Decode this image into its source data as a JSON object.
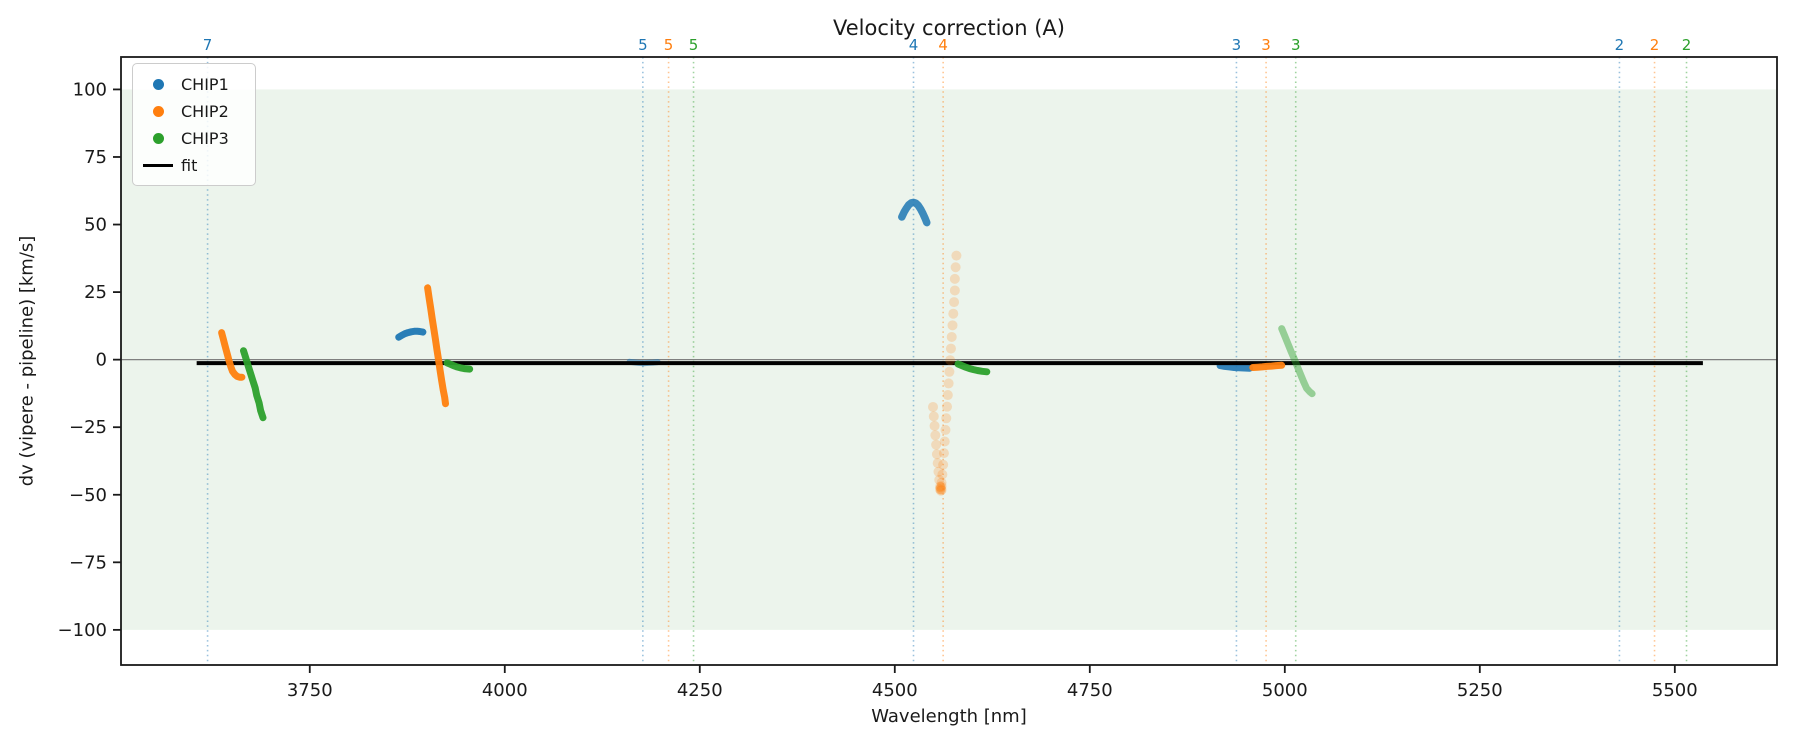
{
  "title": "Velocity correction (A)",
  "legend": {
    "items": [
      {
        "label": "CHIP1",
        "color": "#1f77b4",
        "marker": "dot"
      },
      {
        "label": "CHIP2",
        "color": "#ff7f0e",
        "marker": "dot"
      },
      {
        "label": "CHIP3",
        "color": "#2ca02c",
        "marker": "dot"
      },
      {
        "label": "fit",
        "color": "#000000",
        "marker": "line"
      }
    ]
  },
  "chart_data": {
    "type": "scatter",
    "title": "Velocity correction (A)",
    "xlabel": "Wavelength [nm]",
    "ylabel": "dv (vipere - pipeline) [km/s]",
    "xlim": [
      3508,
      5631
    ],
    "ylim": [
      -113,
      112
    ],
    "x_ticks": [
      3750,
      4000,
      4250,
      4500,
      4750,
      5000,
      5250,
      5500
    ],
    "y_ticks": [
      -100,
      -75,
      -50,
      -25,
      0,
      25,
      50,
      75,
      100
    ],
    "grid": false,
    "legend_position": "upper left",
    "band": {
      "ymin": -100,
      "ymax": 100,
      "color": "#ecf4ec"
    },
    "zero_line": {
      "y": 0,
      "color": "#7f7f7f",
      "width": 1.2
    },
    "fit": {
      "label": "fit",
      "dv": -1.3,
      "wavelength_start": 3605,
      "wavelength_end": 5536,
      "color": "#000000",
      "width": 4
    },
    "order_lines": [
      {
        "chip": "CHIP1",
        "label": "7",
        "wavelength": 3619,
        "color": "#1f77b4"
      },
      {
        "chip": "CHIP1",
        "label": "5",
        "wavelength": 4177,
        "color": "#1f77b4"
      },
      {
        "chip": "CHIP2",
        "label": "5",
        "wavelength": 4210,
        "color": "#ff7f0e"
      },
      {
        "chip": "CHIP3",
        "label": "5",
        "wavelength": 4242,
        "color": "#2ca02c"
      },
      {
        "chip": "CHIP1",
        "label": "4",
        "wavelength": 4524,
        "color": "#1f77b4"
      },
      {
        "chip": "CHIP2",
        "label": "4",
        "wavelength": 4562,
        "color": "#ff7f0e"
      },
      {
        "chip": "CHIP1",
        "label": "3",
        "wavelength": 4938,
        "color": "#1f77b4"
      },
      {
        "chip": "CHIP2",
        "label": "3",
        "wavelength": 4976,
        "color": "#ff7f0e"
      },
      {
        "chip": "CHIP3",
        "label": "3",
        "wavelength": 5014,
        "color": "#2ca02c"
      },
      {
        "chip": "CHIP1",
        "label": "2",
        "wavelength": 5429,
        "color": "#1f77b4"
      },
      {
        "chip": "CHIP2",
        "label": "2",
        "wavelength": 5474,
        "color": "#ff7f0e"
      },
      {
        "chip": "CHIP3",
        "label": "2",
        "wavelength": 5515,
        "color": "#2ca02c"
      }
    ],
    "series": [
      {
        "name": "CHIP1",
        "color": "#1f77b4",
        "segments": [
          {
            "style": "streak",
            "width": 7,
            "opacity": 0.95,
            "points": [
              [
                3864,
                8.3
              ],
              [
                3868,
                9.0
              ],
              [
                3872,
                9.6
              ],
              [
                3876,
                10.0
              ],
              [
                3880,
                10.3
              ],
              [
                3884,
                10.5
              ],
              [
                3888,
                10.5
              ],
              [
                3891,
                10.4
              ],
              [
                3895,
                10.2
              ]
            ]
          },
          {
            "style": "streak",
            "width": 6,
            "opacity": 0.55,
            "points": [
              [
                4160,
                -0.8
              ],
              [
                4166,
                -1.0
              ],
              [
                4172,
                -1.2
              ],
              [
                4178,
                -1.3
              ],
              [
                4184,
                -1.2
              ],
              [
                4190,
                -1.1
              ],
              [
                4196,
                -0.9
              ]
            ]
          },
          {
            "style": "streak",
            "width": 7.5,
            "opacity": 0.85,
            "points": [
              [
                4509,
                52.8
              ],
              [
                4512,
                54.6
              ],
              [
                4515,
                56.1
              ],
              [
                4518,
                57.3
              ],
              [
                4521,
                58.0
              ],
              [
                4524,
                58.2
              ],
              [
                4527,
                57.9
              ],
              [
                4530,
                57.1
              ],
              [
                4533,
                55.8
              ],
              [
                4536,
                54.1
              ],
              [
                4539,
                52.2
              ],
              [
                4541,
                50.7
              ]
            ]
          },
          {
            "style": "streak",
            "width": 7,
            "opacity": 0.9,
            "points": [
              [
                4917,
                -2.2
              ],
              [
                4923,
                -2.5
              ],
              [
                4929,
                -2.7
              ],
              [
                4935,
                -2.9
              ],
              [
                4941,
                -3.0
              ],
              [
                4948,
                -3.1
              ],
              [
                4955,
                -3.2
              ]
            ]
          }
        ]
      },
      {
        "name": "CHIP2",
        "color": "#ff7f0e",
        "segments": [
          {
            "style": "streak",
            "width": 7,
            "opacity": 0.95,
            "points": [
              [
                3637,
                10.0
              ],
              [
                3639,
                7.8
              ],
              [
                3641,
                5.6
              ],
              [
                3643,
                3.4
              ],
              [
                3645,
                1.2
              ],
              [
                3647,
                -0.9
              ],
              [
                3649,
                -2.8
              ],
              [
                3651,
                -4.3
              ],
              [
                3654,
                -5.5
              ],
              [
                3657,
                -6.2
              ],
              [
                3660,
                -6.5
              ],
              [
                3663,
                -6.5
              ]
            ]
          },
          {
            "style": "streak",
            "width": 7,
            "opacity": 0.95,
            "points": [
              [
                3901,
                26.6
              ],
              [
                3903,
                22.8
              ],
              [
                3905,
                19.0
              ],
              [
                3907,
                15.2
              ],
              [
                3909,
                11.4
              ],
              [
                3911,
                7.6
              ],
              [
                3913,
                3.8
              ],
              [
                3915,
                0.0
              ],
              [
                3917,
                -3.8
              ],
              [
                3919,
                -7.6
              ],
              [
                3921,
                -11.2
              ],
              [
                3923,
                -14.0
              ],
              [
                3924,
                -16.3
              ]
            ]
          },
          {
            "style": "dots",
            "radius": 5,
            "opacity": 0.22,
            "points": [
              [
                4579,
                38.5
              ],
              [
                4578,
                34.2
              ],
              [
                4577,
                29.9
              ],
              [
                4577,
                25.6
              ],
              [
                4576,
                21.3
              ],
              [
                4575,
                17.0
              ],
              [
                4574,
                12.7
              ],
              [
                4573,
                8.4
              ],
              [
                4572,
                4.1
              ],
              [
                4571,
                -0.2
              ],
              [
                4570,
                -4.5
              ],
              [
                4569,
                -8.8
              ],
              [
                4568,
                -13.1
              ],
              [
                4567,
                -17.4
              ],
              [
                4566,
                -21.7
              ],
              [
                4565,
                -26.0
              ],
              [
                4564,
                -30.3
              ],
              [
                4563,
                -34.6
              ],
              [
                4562,
                -38.9
              ],
              [
                4561,
                -42.5
              ],
              [
                4560,
                -45.5
              ],
              [
                4559,
                -47.8
              ],
              [
                4549,
                -17.5
              ],
              [
                4550,
                -21.0
              ],
              [
                4551,
                -24.5
              ],
              [
                4552,
                -28.0
              ],
              [
                4553,
                -31.5
              ],
              [
                4554,
                -35.0
              ],
              [
                4555,
                -38.3
              ],
              [
                4556,
                -41.5
              ],
              [
                4557,
                -44.5
              ],
              [
                4558,
                -47.0
              ],
              [
                4559,
                -48.5
              ],
              [
                4560,
                -48.2
              ],
              [
                4558,
                -48.0
              ],
              [
                4559,
                -47.2
              ],
              [
                4560,
                -46.8
              ]
            ]
          },
          {
            "style": "streak",
            "width": 7,
            "opacity": 0.95,
            "points": [
              [
                4959,
                -2.9
              ],
              [
                4965,
                -2.8
              ],
              [
                4971,
                -2.7
              ],
              [
                4977,
                -2.5
              ],
              [
                4983,
                -2.4
              ],
              [
                4989,
                -2.2
              ],
              [
                4996,
                -2.1
              ]
            ]
          }
        ]
      },
      {
        "name": "CHIP3",
        "color": "#2ca02c",
        "segments": [
          {
            "style": "streak",
            "width": 7,
            "opacity": 0.95,
            "points": [
              [
                3665,
                3.3
              ],
              [
                3668,
                0.6
              ],
              [
                3671,
                -2.2
              ],
              [
                3674,
                -5.0
              ],
              [
                3677,
                -7.7
              ],
              [
                3680,
                -10.5
              ],
              [
                3682,
                -13.2
              ],
              [
                3685,
                -16.0
              ],
              [
                3687,
                -18.8
              ],
              [
                3690,
                -21.5
              ]
            ]
          },
          {
            "style": "streak",
            "width": 7,
            "opacity": 0.95,
            "points": [
              [
                3926,
                -1.2
              ],
              [
                3930,
                -1.7
              ],
              [
                3934,
                -2.2
              ],
              [
                3938,
                -2.6
              ],
              [
                3943,
                -3.0
              ],
              [
                3948,
                -3.3
              ],
              [
                3955,
                -3.5
              ]
            ]
          },
          {
            "style": "streak",
            "width": 7,
            "opacity": 0.95,
            "points": [
              [
                4581,
                -1.6
              ],
              [
                4586,
                -2.2
              ],
              [
                4591,
                -2.8
              ],
              [
                4596,
                -3.3
              ],
              [
                4601,
                -3.7
              ],
              [
                4606,
                -4.0
              ],
              [
                4612,
                -4.3
              ],
              [
                4618,
                -4.5
              ]
            ]
          },
          {
            "style": "streak",
            "width": 7,
            "opacity": 0.45,
            "points": [
              [
                4996,
                11.5
              ],
              [
                5000,
                8.7
              ],
              [
                5004,
                5.9
              ],
              [
                5008,
                3.1
              ],
              [
                5012,
                0.3
              ],
              [
                5016,
                -2.5
              ],
              [
                5020,
                -5.3
              ],
              [
                5024,
                -8.1
              ],
              [
                5028,
                -10.6
              ],
              [
                5032,
                -11.9
              ],
              [
                5035,
                -12.6
              ]
            ]
          }
        ]
      }
    ]
  }
}
